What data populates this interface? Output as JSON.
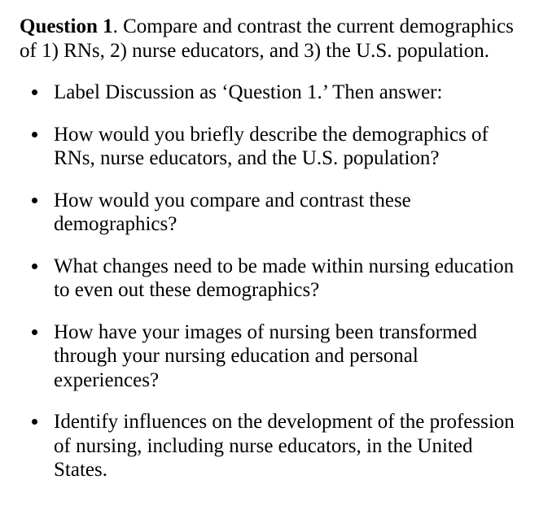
{
  "intro": {
    "label": "Question 1",
    "text": ". Compare and contrast the current demographics of 1) RNs, 2) nurse educators, and 3) the U.S. population."
  },
  "bullets": [
    "Label Discussion as ‘Question 1.’ Then answer:",
    "How would you briefly describe the demographics of RNs, nurse educators, and the U.S. population?",
    "How would you compare and contrast these demographics?",
    "What changes need to be made within nursing education to even out these demographics?",
    "How have your images of nursing been transformed through your nursing education and personal experiences?",
    "Identify influences on the development of the profession of nursing, including nurse educators, in the United States."
  ],
  "style": {
    "background_color": "#ffffff",
    "text_color": "#000000",
    "font_family": "Times New Roman",
    "font_size_pt": 19,
    "line_height": 1.18,
    "bullet_style": "disc"
  }
}
